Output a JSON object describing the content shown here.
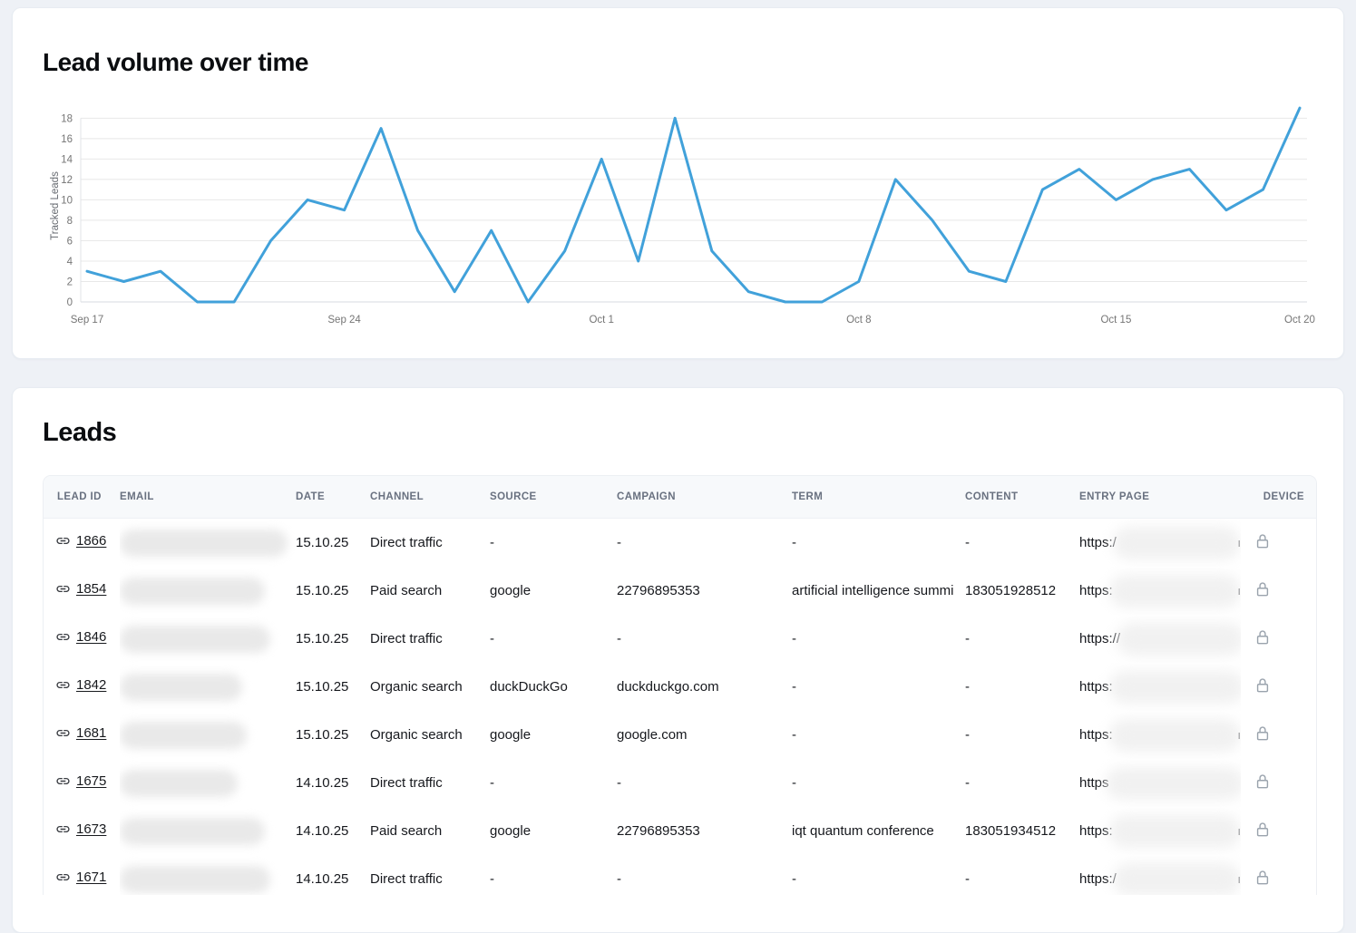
{
  "chart_card": {
    "title": "Lead volume over time"
  },
  "chart_data": {
    "type": "line",
    "title": "Lead volume over time",
    "ylabel": "Tracked Leads",
    "xlabel": "",
    "ylim": [
      0,
      19
    ],
    "yticks": [
      0,
      2,
      4,
      6,
      8,
      10,
      12,
      14,
      16,
      18
    ],
    "grid": "horizontal",
    "line_color": "#41a1da",
    "x": [
      "Sep 17",
      "Sep 18",
      "Sep 19",
      "Sep 20",
      "Sep 21",
      "Sep 22",
      "Sep 23",
      "Sep 24",
      "Sep 25",
      "Sep 26",
      "Sep 27",
      "Sep 28",
      "Sep 29",
      "Sep 30",
      "Oct 1",
      "Oct 2",
      "Oct 3",
      "Oct 4",
      "Oct 5",
      "Oct 6",
      "Oct 7",
      "Oct 8",
      "Oct 9",
      "Oct 10",
      "Oct 11",
      "Oct 12",
      "Oct 13",
      "Oct 14",
      "Oct 15",
      "Oct 16",
      "Oct 17",
      "Oct 18",
      "Oct 19",
      "Oct 20"
    ],
    "values": [
      3,
      2,
      3,
      0,
      0,
      6,
      10,
      9,
      17,
      7,
      1,
      7,
      0,
      5,
      14,
      4,
      18,
      5,
      1,
      0,
      0,
      2,
      12,
      8,
      3,
      2,
      11,
      13,
      10,
      12,
      13,
      9,
      11,
      19
    ],
    "xtick_labels": [
      {
        "index": 0,
        "label": "Sep 17"
      },
      {
        "index": 7,
        "label": "Sep 24"
      },
      {
        "index": 14,
        "label": "Oct 1"
      },
      {
        "index": 21,
        "label": "Oct 8"
      },
      {
        "index": 28,
        "label": "Oct 15"
      },
      {
        "index": 33,
        "label": "Oct 20"
      }
    ]
  },
  "leads_card": {
    "title": "Leads",
    "table": {
      "columns": [
        "LEAD ID",
        "EMAIL",
        "DATE",
        "CHANNEL",
        "SOURCE",
        "CAMPAIGN",
        "TERM",
        "CONTENT",
        "ENTRY PAGE",
        "DEVICE"
      ],
      "rows": [
        {
          "id": "1866",
          "date": "15.10.25",
          "channel": "Direct traffic",
          "source": "-",
          "campaign": "-",
          "term": "-",
          "content": "-",
          "entry_prefix": "https:/",
          "entry_suffix": "ı",
          "email_redacted_width": 185,
          "entry_redacted_width": 152
        },
        {
          "id": "1854",
          "date": "15.10.25",
          "channel": "Paid search",
          "source": "google",
          "campaign": "22796895353",
          "term": "artificial intelligence summi",
          "content": "183051928512",
          "entry_prefix": "https:",
          "entry_suffix": "ı",
          "email_redacted_width": 160,
          "entry_redacted_width": 162
        },
        {
          "id": "1846",
          "date": "15.10.25",
          "channel": "Direct traffic",
          "source": "-",
          "campaign": "-",
          "term": "-",
          "content": "-",
          "entry_prefix": "https://",
          "entry_suffix": "",
          "email_redacted_width": 166,
          "entry_redacted_width": 158
        },
        {
          "id": "1842",
          "date": "15.10.25",
          "channel": "Organic search",
          "source": "duckDuckGo",
          "campaign": "duckduckgo.com",
          "term": "-",
          "content": "-",
          "entry_prefix": "https:",
          "entry_suffix": "",
          "email_redacted_width": 135,
          "entry_redacted_width": 165
        },
        {
          "id": "1681",
          "date": "15.10.25",
          "channel": "Organic search",
          "source": "google",
          "campaign": "google.com",
          "term": "-",
          "content": "-",
          "entry_prefix": "https:",
          "entry_suffix": "ı",
          "email_redacted_width": 140,
          "entry_redacted_width": 158
        },
        {
          "id": "1675",
          "date": "14.10.25",
          "channel": "Direct traffic",
          "source": "-",
          "campaign": "-",
          "term": "-",
          "content": "-",
          "entry_prefix": "https",
          "entry_suffix": "",
          "email_redacted_width": 130,
          "entry_redacted_width": 160
        },
        {
          "id": "1673",
          "date": "14.10.25",
          "channel": "Paid search",
          "source": "google",
          "campaign": "22796895353",
          "term": "iqt quantum conference",
          "content": "183051934512",
          "entry_prefix": "https:",
          "entry_suffix": "ı",
          "email_redacted_width": 160,
          "entry_redacted_width": 162
        },
        {
          "id": "1671",
          "date": "14.10.25",
          "channel": "Direct traffic",
          "source": "-",
          "campaign": "-",
          "term": "-",
          "content": "-",
          "entry_prefix": "https:/",
          "entry_suffix": "ı",
          "email_redacted_width": 166,
          "entry_redacted_width": 150
        }
      ]
    }
  }
}
